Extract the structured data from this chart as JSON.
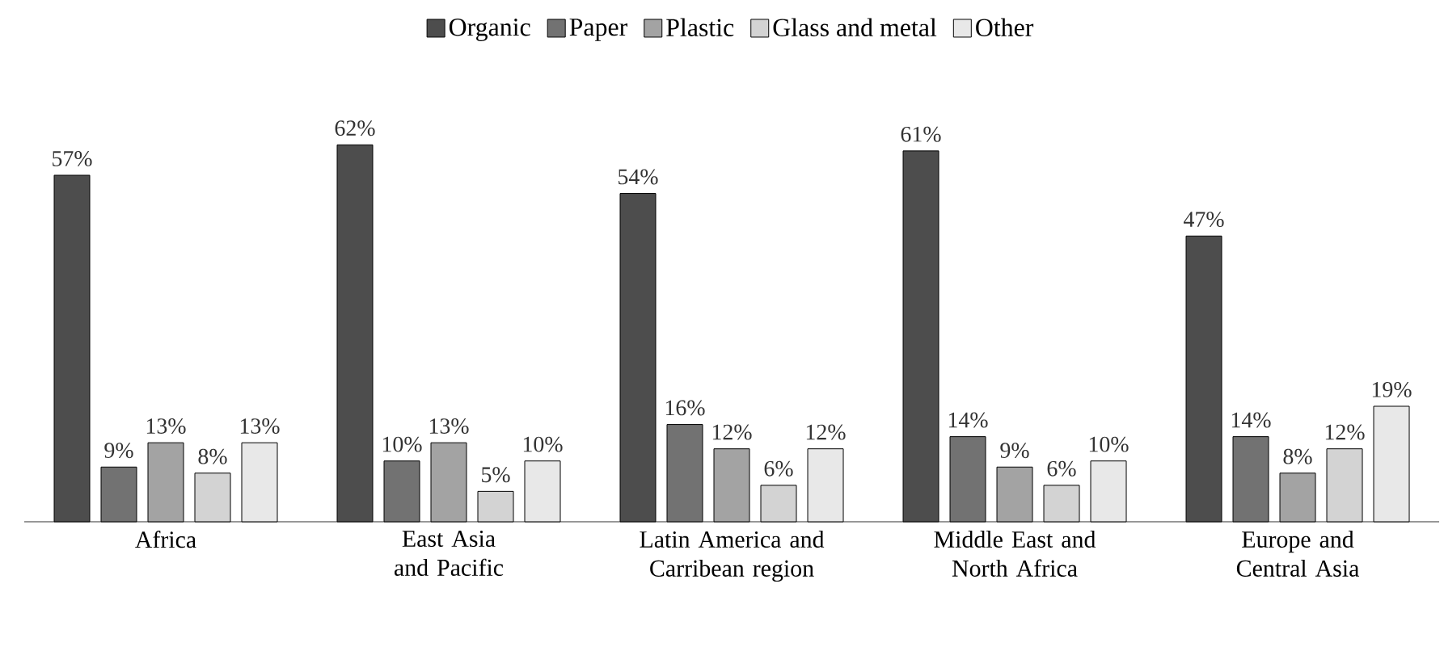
{
  "chart_data": {
    "type": "bar",
    "categories": [
      "Africa",
      "East Asia and Pacific",
      "Latin America and Carribean region",
      "Middle East and North Africa",
      "Europe and Central Asia"
    ],
    "series": [
      {
        "name": "Organic",
        "color": "#4d4d4d",
        "values": [
          57,
          62,
          54,
          61,
          47
        ],
        "value_labels": [
          "57%",
          "62%",
          "54%",
          "61%",
          "47%"
        ]
      },
      {
        "name": "Paper",
        "color": "#727272",
        "values": [
          9,
          10,
          16,
          14,
          14
        ],
        "value_labels": [
          "9%",
          "10%",
          "16%",
          "14%",
          "14%"
        ]
      },
      {
        "name": "Plastic",
        "color": "#a3a3a3",
        "values": [
          13,
          13,
          12,
          9,
          8
        ],
        "value_labels": [
          "13%",
          "13%",
          "12%",
          "9%",
          "8%"
        ]
      },
      {
        "name": "Glass and metal",
        "color": "#d3d3d3",
        "values": [
          8,
          5,
          6,
          6,
          12
        ],
        "value_labels": [
          "8%",
          "5%",
          "6%",
          "6%",
          "12%"
        ]
      },
      {
        "name": "Other",
        "color": "#e8e8e8",
        "values": [
          13,
          10,
          12,
          10,
          19
        ],
        "value_labels": [
          "13%",
          "10%",
          "12%",
          "10%",
          "19%"
        ]
      }
    ],
    "legend": "top"
  }
}
